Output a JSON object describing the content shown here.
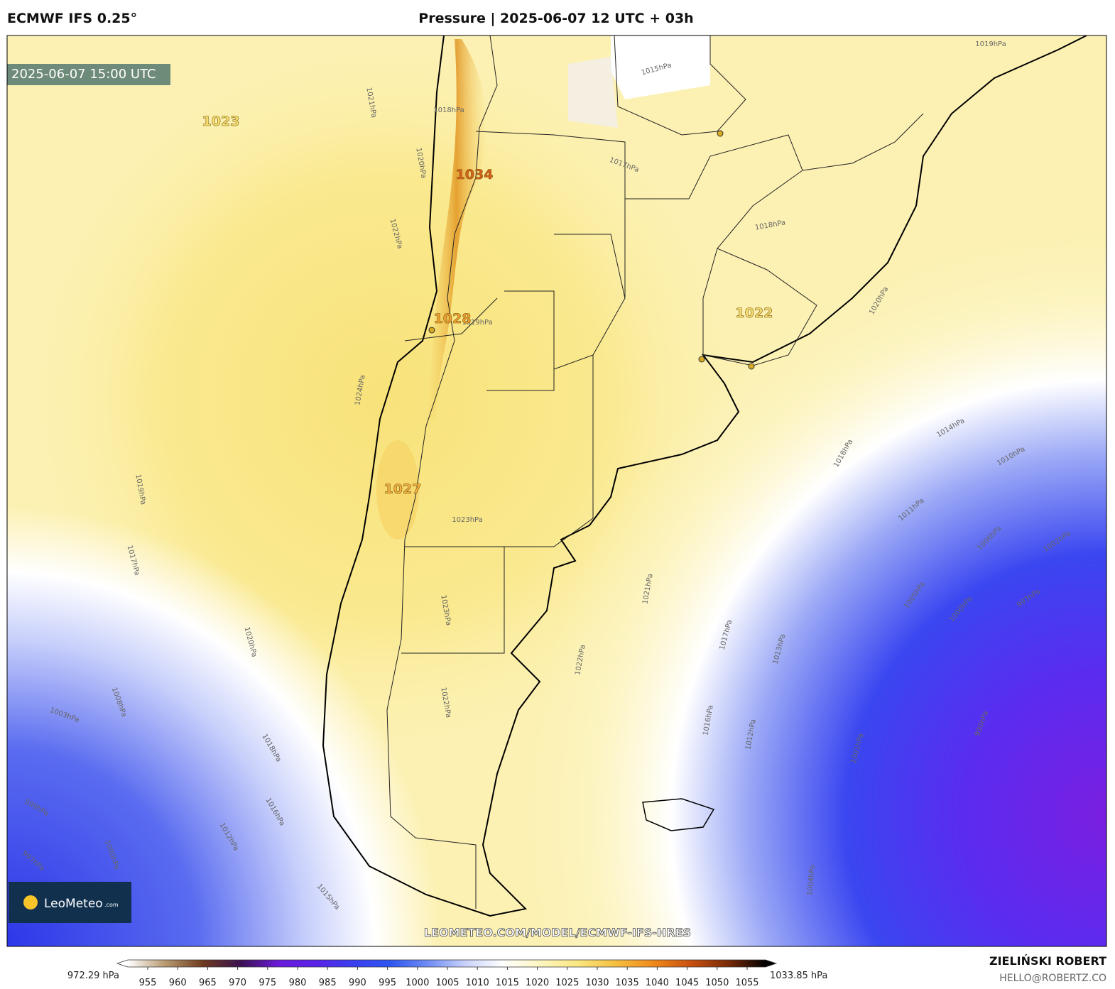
{
  "header": {
    "model": "ECMWF IFS 0.25°",
    "title": "Pressure | 2025-06-07 12 UTC + 03h"
  },
  "timestamp": "2025-06-07 15:00 UTC",
  "pressure_centers": [
    "1023",
    "1034",
    "1028",
    "1027",
    "1022"
  ],
  "contour_labels": [
    "1021hPa",
    "1020hPa",
    "1022hPa",
    "1018hPa",
    "1017hPa",
    "1015hPa",
    "1019hPa",
    "1018hPa",
    "1020hPa",
    "1019hPa",
    "1024hPa",
    "1023hPa",
    "1023hPa",
    "1022hPa",
    "1022hPa",
    "1021hPa",
    "1019hPa",
    "1017hPa",
    "1020hPa",
    "1018hPa",
    "1014hPa",
    "1010hPa",
    "1011hPa",
    "1006hPa",
    "1002hPa",
    "1005hPa",
    "1000hPa",
    "997hPa",
    "1017hPa",
    "1013hPa",
    "1016hPa",
    "1012hPa",
    "1004hPa",
    "1018hPa",
    "1016hPa",
    "1015hPa",
    "1012hPa",
    "1008hPa",
    "1003hPa",
    "999hPa",
    "997hPa",
    "1000hPa",
    "990hPa",
    "1001hPa"
  ],
  "watermark": "LEOMETEO.COM/MODEL/ECMWF-IFS-HRES",
  "logo": {
    "name": "LeoMeteo",
    "suffix": ".com"
  },
  "colorbar": {
    "min_label": "972.29 hPa",
    "max_label": "1033.85 hPa",
    "ticks": [
      955,
      960,
      965,
      970,
      975,
      980,
      985,
      990,
      995,
      1000,
      1005,
      1010,
      1015,
      1020,
      1025,
      1030,
      1035,
      1040,
      1045,
      1050,
      1055
    ],
    "colors": [
      "#ffffff",
      "#b89a70",
      "#6e3a1e",
      "#3a1050",
      "#6a1ad8",
      "#5a22e8",
      "#3a3ff0",
      "#2f55f0",
      "#6f8cf5",
      "#c9d2fb",
      "#ffffff",
      "#fdf5c0",
      "#fbe680",
      "#f5c040",
      "#f08a1a",
      "#c85010",
      "#7a2a08",
      "#000000"
    ]
  },
  "author": {
    "name": "ZIELIŃSKI ROBERT",
    "email": "HELLO@ROBERTZ.CO"
  }
}
